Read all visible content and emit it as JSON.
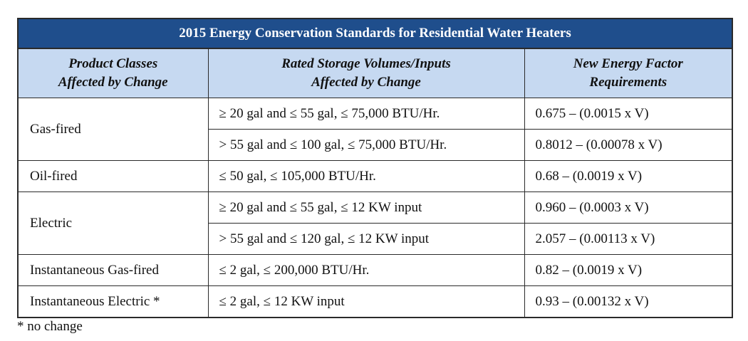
{
  "title": "2015 Energy Conservation Standards for Residential Water Heaters",
  "headers": {
    "col1": [
      "Product Classes",
      "Affected by Change"
    ],
    "col2": [
      "Rated Storage Volumes/Inputs",
      "Affected by Change"
    ],
    "col3": [
      "New Energy Factor",
      "Requirements"
    ]
  },
  "rows": [
    {
      "class": "Gas-fired",
      "volume": "≥ 20 gal and ≤ 55 gal, ≤ 75,000 BTU/Hr.",
      "factor": "0.675 – (0.0015 x V)"
    },
    {
      "class": "",
      "volume": "> 55 gal and ≤ 100 gal, ≤ 75,000 BTU/Hr.",
      "factor": "0.8012 – (0.00078 x  V)"
    },
    {
      "class": "Oil-fired",
      "volume": "≤ 50 gal, ≤ 105,000 BTU/Hr.",
      "factor": "0.68 – (0.0019 x V)"
    },
    {
      "class": "Electric",
      "volume": "≥ 20 gal and ≤ 55 gal, ≤ 12 KW input",
      "factor": "0.960 – (0.0003 x V)"
    },
    {
      "class": "",
      "volume": "> 55 gal and ≤ 120 gal, ≤ 12 KW input",
      "factor": "2.057 – (0.00113 x V)"
    },
    {
      "class": "Instantaneous Gas-fired",
      "volume": "≤ 2 gal, ≤ 200,000 BTU/Hr.",
      "factor": "0.82 – (0.0019 x V)"
    },
    {
      "class": "Instantaneous Electric *",
      "volume": "≤ 2 gal, ≤ 12 KW input",
      "factor": "0.93 – (0.00132 x V)"
    }
  ],
  "footnote": "* no change",
  "colors": {
    "title_bg": "#1f4e8c",
    "header_bg": "#c6d9f1"
  }
}
